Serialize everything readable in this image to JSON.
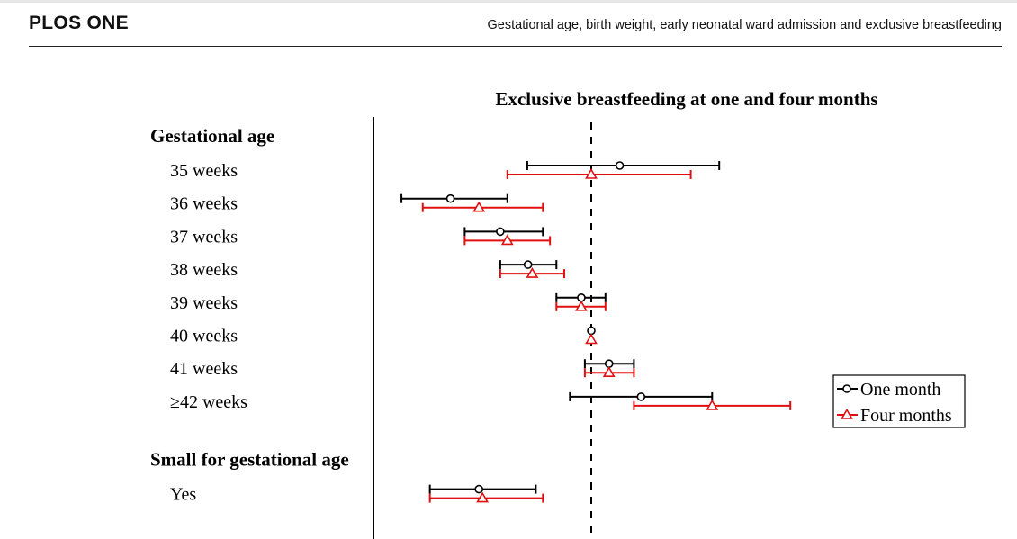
{
  "header": {
    "journal": "PLOS ONE",
    "running_title": "Gestational age, birth weight, early neonatal ward admission and exclusive breastfeeding"
  },
  "colors": {
    "one_month": "#000000",
    "four_months": "#e01010"
  },
  "chart_data": {
    "type": "forest",
    "title": "Exclusive breastfeeding at one and four months",
    "reference_line": "dashed vertical at 0",
    "x_range": [
      -2.7,
      2.8
    ],
    "legend": {
      "placement": "right",
      "entries": [
        "One month",
        "Four months"
      ]
    },
    "groups": [
      {
        "heading": "Gestational age",
        "rows": [
          {
            "label": "35 weeks",
            "one_month": {
              "est": 0.4,
              "lo": -0.9,
              "hi": 1.8
            },
            "four_months": {
              "est": 0.0,
              "lo": -1.18,
              "hi": 1.4
            }
          },
          {
            "label": "36 weeks",
            "one_month": {
              "est": -1.98,
              "lo": -2.67,
              "hi": -1.18
            },
            "four_months": {
              "est": -1.58,
              "lo": -2.37,
              "hi": -0.68
            }
          },
          {
            "label": "37 weeks",
            "one_month": {
              "est": -1.28,
              "lo": -1.78,
              "hi": -0.68
            },
            "four_months": {
              "est": -1.18,
              "lo": -1.78,
              "hi": -0.58
            }
          },
          {
            "label": "38 weeks",
            "one_month": {
              "est": -0.89,
              "lo": -1.28,
              "hi": -0.49
            },
            "four_months": {
              "est": -0.83,
              "lo": -1.28,
              "hi": -0.38
            }
          },
          {
            "label": "39 weeks",
            "one_month": {
              "est": -0.14,
              "lo": -0.49,
              "hi": 0.2
            },
            "four_months": {
              "est": -0.14,
              "lo": -0.49,
              "hi": 0.2
            }
          },
          {
            "label": "40 weeks",
            "one_month": {
              "est": 0.0,
              "lo": 0.0,
              "hi": 0.0
            },
            "four_months": {
              "est": 0.0,
              "lo": 0.0,
              "hi": 0.0
            }
          },
          {
            "label": "41 weeks",
            "one_month": {
              "est": 0.25,
              "lo": -0.09,
              "hi": 0.6
            },
            "four_months": {
              "est": 0.25,
              "lo": -0.09,
              "hi": 0.6
            }
          },
          {
            "label": "≥42 weeks",
            "one_month": {
              "est": 0.7,
              "lo": -0.3,
              "hi": 1.7
            },
            "four_months": {
              "est": 1.7,
              "lo": 0.6,
              "hi": 2.8
            }
          }
        ]
      },
      {
        "heading": "Small for gestational age",
        "rows": [
          {
            "label": "Yes",
            "one_month": {
              "est": -1.58,
              "lo": -2.27,
              "hi": -0.78
            },
            "four_months": {
              "est": -1.53,
              "lo": -2.27,
              "hi": -0.68
            }
          }
        ]
      }
    ]
  }
}
